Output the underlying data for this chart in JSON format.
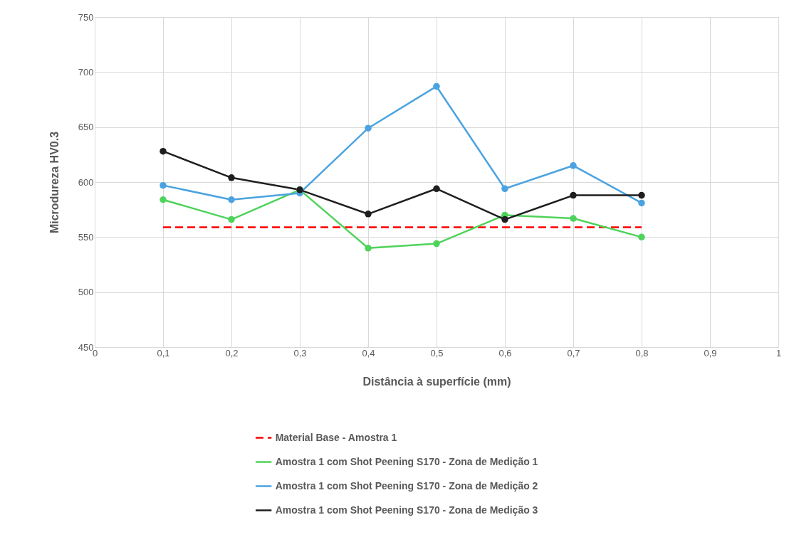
{
  "chart_data": {
    "type": "line",
    "xlabel": "Distância à superfície (mm)",
    "ylabel": "Microdureza  HV0.3",
    "x": [
      0.1,
      0.2,
      0.3,
      0.4,
      0.5,
      0.6,
      0.7,
      0.8
    ],
    "series": [
      {
        "name": "Material Base - Amostra 1",
        "color": "#ff0000",
        "x": [
          0.1,
          0.8
        ],
        "values": [
          559,
          559
        ],
        "line_style": "dashed",
        "marker": "none"
      },
      {
        "name": "Amostra 1 com Shot Peening S170 - Zona de Medição 1",
        "color": "#4ed35a",
        "values": [
          584,
          566,
          593,
          540,
          544,
          570,
          567,
          550
        ],
        "line_style": "solid",
        "marker": "circle"
      },
      {
        "name": "Amostra 1 com Shot Peening S170 - Zona de Medição 2",
        "color": "#4aa3e0",
        "values": [
          597,
          584,
          590,
          649,
          687,
          594,
          615,
          581
        ],
        "line_style": "solid",
        "marker": "circle"
      },
      {
        "name": "Amostra 1 com Shot Peening S170 - Zona de Medição 3",
        "color": "#1e1e1e",
        "values": [
          628,
          604,
          593,
          571,
          594,
          566,
          588,
          588
        ],
        "line_style": "solid",
        "marker": "circle"
      }
    ],
    "xlim": [
      0,
      1
    ],
    "ylim": [
      450,
      750
    ],
    "xticks": [
      0,
      {
        "value": 0.1,
        "label": "0,1"
      },
      {
        "value": 0.2,
        "label": "0,2"
      },
      {
        "value": 0.3,
        "label": "0,3"
      },
      {
        "value": 0.4,
        "label": "0,4"
      },
      {
        "value": 0.5,
        "label": "0,5"
      },
      {
        "value": 0.6,
        "label": "0,6"
      },
      {
        "value": 0.7,
        "label": "0,7"
      },
      {
        "value": 0.8,
        "label": "0,8"
      },
      {
        "value": 0.9,
        "label": "0,9"
      },
      1
    ],
    "yticks": [
      450,
      500,
      550,
      600,
      650,
      700,
      750
    ],
    "grid": true,
    "legend": "bottom"
  }
}
